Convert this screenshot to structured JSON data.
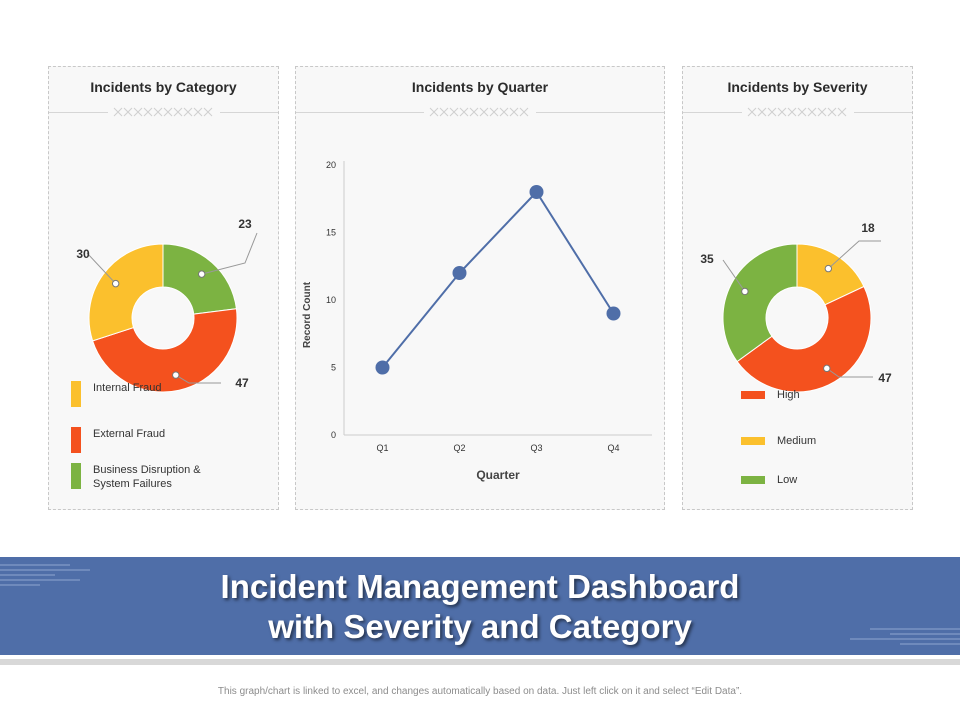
{
  "colors": {
    "yellow": "#fbc02d",
    "red": "#f4511e",
    "green": "#7cb342",
    "line": "#4f6ea8",
    "banner": "#4f6ea8"
  },
  "panels": {
    "category": {
      "title": "Incidents by Category"
    },
    "quarter": {
      "title": "Incidents by Quarter"
    },
    "severity": {
      "title": "Incidents by Severity"
    }
  },
  "banner": {
    "line1": "Incident Management Dashboard",
    "line2": "with Severity and Category"
  },
  "footnote": "This graph/chart is linked to excel, and changes automatically based on data. Just left click on it and select “Edit Data”.",
  "chart_data": [
    {
      "type": "pie",
      "title": "Incidents by Category",
      "slices": [
        {
          "label": "Business Disruption & System Failures",
          "value": 23,
          "color": "#7cb342"
        },
        {
          "label": "External Fraud",
          "value": 47,
          "color": "#f4511e"
        },
        {
          "label": "Internal Fraud",
          "value": 30,
          "color": "#fbc02d"
        }
      ],
      "legend": [
        {
          "label": "Internal Fraud",
          "color": "#fbc02d"
        },
        {
          "label": "External Fraud",
          "color": "#f4511e"
        },
        {
          "label": "Business Disruption & System Failures",
          "color": "#7cb342"
        }
      ]
    },
    {
      "type": "line",
      "title": "Incidents by Quarter",
      "categories": [
        "Q1",
        "Q2",
        "Q3",
        "Q4"
      ],
      "series": [
        {
          "values": [
            5,
            12,
            18,
            9
          ]
        }
      ],
      "xlabel": "Quarter",
      "ylabel": "Record Count",
      "ylim": [
        0,
        20
      ],
      "yticks": [
        0,
        5,
        10,
        15,
        20
      ]
    },
    {
      "type": "pie",
      "title": "Incidents by Severity",
      "slices": [
        {
          "label": "Medium",
          "value": 18,
          "color": "#fbc02d"
        },
        {
          "label": "High",
          "value": 47,
          "color": "#f4511e"
        },
        {
          "label": "Low",
          "value": 35,
          "color": "#7cb342"
        }
      ],
      "legend": [
        {
          "label": "High",
          "color": "#f4511e"
        },
        {
          "label": "Medium",
          "color": "#fbc02d"
        },
        {
          "label": "Low",
          "color": "#7cb342"
        }
      ]
    }
  ]
}
